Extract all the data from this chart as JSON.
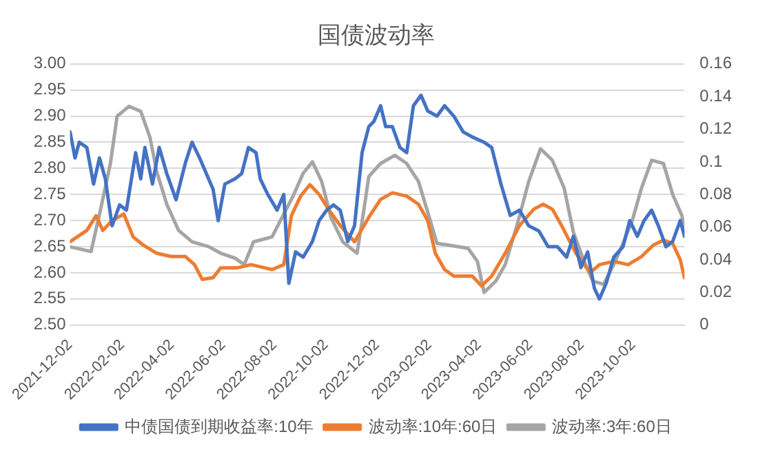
{
  "chart_data": {
    "type": "line",
    "title": "国债波动率",
    "xlim": [
      "2021-12-02",
      "2023-12-02"
    ],
    "xticks": [
      "2021-12-02",
      "2022-02-02",
      "2022-04-02",
      "2022-06-02",
      "2022-08-02",
      "2022-10-02",
      "2022-12-02",
      "2023-02-02",
      "2023-04-02",
      "2023-06-02",
      "2023-08-02",
      "2023-10-02"
    ],
    "ylim": [
      2.5,
      3.0
    ],
    "yticks": [
      {
        "value": 2.5,
        "label": "2.50"
      },
      {
        "value": 2.55,
        "label": "2.55"
      },
      {
        "value": 2.6,
        "label": "2.60"
      },
      {
        "value": 2.65,
        "label": "2.65"
      },
      {
        "value": 2.7,
        "label": "2.70"
      },
      {
        "value": 2.75,
        "label": "2.75"
      },
      {
        "value": 2.8,
        "label": "2.80"
      },
      {
        "value": 2.85,
        "label": "2.85"
      },
      {
        "value": 2.9,
        "label": "2.90"
      },
      {
        "value": 2.95,
        "label": "2.95"
      },
      {
        "value": 3.0,
        "label": "3.00"
      }
    ],
    "y2lim": [
      0,
      0.16
    ],
    "y2ticks": [
      0,
      0.02,
      0.04,
      0.06,
      0.08,
      0.1,
      0.12,
      0.14,
      0.16
    ],
    "grid": "y",
    "legend": "bottom",
    "marker": "none",
    "line_style": "solid",
    "series": [
      {
        "name": "中债国债到期收益率:10年",
        "color": "#4472c4",
        "x": [
          "2021-12-02",
          "2021-12-08",
          "2021-12-13",
          "2021-12-22",
          "2021-12-30",
          "2022-01-06",
          "2022-01-13",
          "2022-01-21",
          "2022-01-30",
          "2022-02-07",
          "2022-02-13",
          "2022-02-18",
          "2022-02-24",
          "2022-03-01",
          "2022-03-10",
          "2022-03-18",
          "2022-03-27",
          "2022-04-07",
          "2022-04-18",
          "2022-04-26",
          "2022-05-05",
          "2022-05-13",
          "2022-05-21",
          "2022-05-27",
          "2022-06-04",
          "2022-06-16",
          "2022-06-24",
          "2022-07-02",
          "2022-07-11",
          "2022-07-16",
          "2022-07-25",
          "2022-08-05",
          "2022-08-13",
          "2022-08-19",
          "2022-08-27",
          "2022-09-05",
          "2022-09-16",
          "2022-09-24",
          "2022-10-03",
          "2022-10-11",
          "2022-10-19",
          "2022-10-28",
          "2022-11-05",
          "2022-11-14",
          "2022-11-22",
          "2022-11-28",
          "2022-12-06",
          "2022-12-12",
          "2022-12-20",
          "2022-12-29",
          "2023-01-06",
          "2023-01-14",
          "2023-01-23",
          "2023-01-31",
          "2023-02-11",
          "2023-02-20",
          "2023-03-03",
          "2023-03-14",
          "2023-03-25",
          "2023-04-08",
          "2023-04-17",
          "2023-04-28",
          "2023-05-09",
          "2023-05-20",
          "2023-05-31",
          "2023-06-12",
          "2023-06-23",
          "2023-07-04",
          "2023-07-15",
          "2023-07-23",
          "2023-08-01",
          "2023-08-09",
          "2023-08-17",
          "2023-08-23",
          "2023-08-31",
          "2023-09-09",
          "2023-09-20",
          "2023-09-28",
          "2023-10-07",
          "2023-10-15",
          "2023-10-24",
          "2023-11-01",
          "2023-11-10",
          "2023-11-18",
          "2023-11-27",
          "2023-12-02"
        ],
        "values": [
          2.87,
          2.82,
          2.85,
          2.84,
          2.77,
          2.82,
          2.78,
          2.69,
          2.73,
          2.72,
          2.78,
          2.83,
          2.78,
          2.84,
          2.77,
          2.84,
          2.79,
          2.74,
          2.81,
          2.85,
          2.82,
          2.79,
          2.76,
          2.7,
          2.77,
          2.78,
          2.79,
          2.84,
          2.83,
          2.78,
          2.75,
          2.72,
          2.75,
          2.58,
          2.64,
          2.63,
          2.66,
          2.7,
          2.72,
          2.73,
          2.72,
          2.66,
          2.69,
          2.83,
          2.88,
          2.89,
          2.92,
          2.88,
          2.88,
          2.84,
          2.83,
          2.92,
          2.94,
          2.91,
          2.9,
          2.92,
          2.9,
          2.87,
          2.86,
          2.85,
          2.84,
          2.77,
          2.71,
          2.72,
          2.69,
          2.68,
          2.65,
          2.65,
          2.63,
          2.67,
          2.61,
          2.64,
          2.57,
          2.55,
          2.58,
          2.63,
          2.65,
          2.7,
          2.67,
          2.7,
          2.72,
          2.69,
          2.65,
          2.66,
          2.7,
          2.67
        ]
      },
      {
        "name": "波动率:10年:60日",
        "color": "#ed7d31",
        "axis": "y2",
        "x": [
          "2021-12-02",
          "2021-12-22",
          "2022-01-02",
          "2022-01-10",
          "2022-01-21",
          "2022-02-04",
          "2022-02-15",
          "2022-02-27",
          "2022-03-15",
          "2022-04-01",
          "2022-04-18",
          "2022-04-29",
          "2022-05-08",
          "2022-05-21",
          "2022-05-30",
          "2022-06-18",
          "2022-07-05",
          "2022-07-22",
          "2022-07-30",
          "2022-08-13",
          "2022-08-22",
          "2022-09-02",
          "2022-09-13",
          "2022-09-24",
          "2022-10-05",
          "2022-10-19",
          "2022-11-05",
          "2022-11-22",
          "2022-12-06",
          "2022-12-20",
          "2023-01-06",
          "2023-01-20",
          "2023-01-31",
          "2023-02-09",
          "2023-02-20",
          "2023-03-03",
          "2023-03-25",
          "2023-04-05",
          "2023-04-17",
          "2023-05-03",
          "2023-05-20",
          "2023-06-06",
          "2023-06-17",
          "2023-06-28",
          "2023-07-09",
          "2023-07-26",
          "2023-08-12",
          "2023-08-23",
          "2023-09-09",
          "2023-09-26",
          "2023-10-12",
          "2023-10-26",
          "2023-11-07",
          "2023-11-18",
          "2023-11-27",
          "2023-12-02"
        ],
        "values": [
          0.051,
          0.058,
          0.067,
          0.058,
          0.064,
          0.068,
          0.054,
          0.049,
          0.044,
          0.042,
          0.042,
          0.037,
          0.028,
          0.029,
          0.035,
          0.035,
          0.037,
          0.035,
          0.034,
          0.037,
          0.067,
          0.079,
          0.086,
          0.08,
          0.071,
          0.061,
          0.051,
          0.066,
          0.077,
          0.081,
          0.079,
          0.074,
          0.064,
          0.044,
          0.034,
          0.03,
          0.03,
          0.024,
          0.03,
          0.044,
          0.061,
          0.071,
          0.074,
          0.071,
          0.061,
          0.044,
          0.032,
          0.037,
          0.039,
          0.037,
          0.042,
          0.049,
          0.052,
          0.05,
          0.04,
          0.029
        ]
      },
      {
        "name": "波动率:3年:60日",
        "color": "#a5a5a5",
        "axis": "y2",
        "x": [
          "2021-12-02",
          "2021-12-27",
          "2022-01-07",
          "2022-01-19",
          "2022-01-27",
          "2022-02-10",
          "2022-02-24",
          "2022-03-07",
          "2022-03-15",
          "2022-03-27",
          "2022-04-10",
          "2022-04-26",
          "2022-05-16",
          "2022-05-30",
          "2022-06-16",
          "2022-06-27",
          "2022-07-08",
          "2022-07-30",
          "2022-08-13",
          "2022-08-24",
          "2022-09-05",
          "2022-09-16",
          "2022-09-27",
          "2022-10-08",
          "2022-10-22",
          "2022-11-08",
          "2022-11-16",
          "2022-11-22",
          "2022-12-06",
          "2022-12-23",
          "2023-01-06",
          "2023-01-20",
          "2023-02-03",
          "2023-02-11",
          "2023-02-25",
          "2023-03-20",
          "2023-03-31",
          "2023-04-08",
          "2023-04-22",
          "2023-05-03",
          "2023-05-17",
          "2023-05-31",
          "2023-06-14",
          "2023-06-28",
          "2023-07-12",
          "2023-07-23",
          "2023-08-04",
          "2023-08-15",
          "2023-08-28",
          "2023-09-09",
          "2023-09-20",
          "2023-10-01",
          "2023-10-12",
          "2023-10-24",
          "2023-11-07",
          "2023-11-18",
          "2023-11-29",
          "2023-12-02"
        ],
        "values": [
          0.048,
          0.045,
          0.07,
          0.099,
          0.128,
          0.134,
          0.131,
          0.115,
          0.094,
          0.074,
          0.058,
          0.051,
          0.048,
          0.044,
          0.041,
          0.037,
          0.051,
          0.054,
          0.068,
          0.079,
          0.093,
          0.1,
          0.088,
          0.066,
          0.051,
          0.044,
          0.07,
          0.091,
          0.099,
          0.104,
          0.099,
          0.088,
          0.064,
          0.05,
          0.049,
          0.047,
          0.039,
          0.02,
          0.027,
          0.037,
          0.061,
          0.088,
          0.108,
          0.101,
          0.084,
          0.057,
          0.04,
          0.027,
          0.025,
          0.037,
          0.05,
          0.064,
          0.084,
          0.101,
          0.099,
          0.08,
          0.067,
          0.057
        ]
      }
    ]
  }
}
